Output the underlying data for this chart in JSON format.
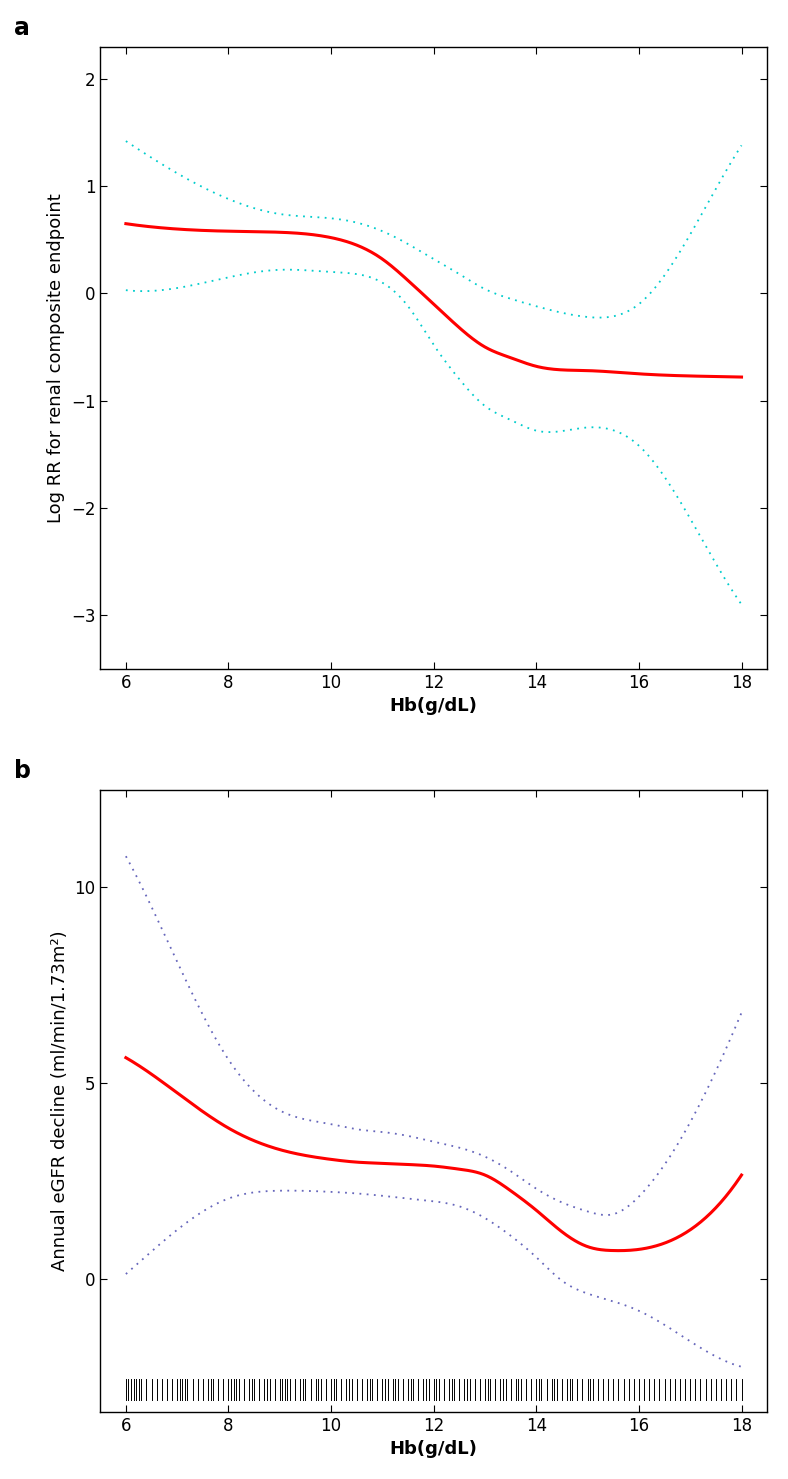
{
  "panel_a": {
    "label": "a",
    "xlabel": "Hb(g/dL)",
    "ylabel": "Log RR for renal composite endpoint",
    "xlim": [
      5.5,
      18.5
    ],
    "ylim": [
      -3.5,
      2.3
    ],
    "xticks": [
      6,
      8,
      10,
      12,
      14,
      16,
      18
    ],
    "yticks": [
      -3,
      -2,
      -1,
      0,
      1,
      2
    ],
    "line_color": "#FF0000",
    "ci_color": "#00CCCC",
    "main_x": [
      6,
      7,
      8,
      9,
      10,
      10.5,
      11,
      11.5,
      12,
      12.5,
      13,
      13.5,
      14,
      15,
      16,
      17,
      18
    ],
    "main_y": [
      0.65,
      0.6,
      0.58,
      0.57,
      0.52,
      0.45,
      0.32,
      0.12,
      -0.1,
      -0.32,
      -0.5,
      -0.6,
      -0.68,
      -0.72,
      -0.75,
      -0.77,
      -0.78
    ],
    "upper_x": [
      6,
      7,
      8,
      9,
      10,
      10.5,
      11,
      11.5,
      12,
      12.5,
      13,
      13.5,
      14,
      15,
      16,
      17,
      18
    ],
    "upper_y": [
      1.42,
      1.12,
      0.88,
      0.74,
      0.7,
      0.66,
      0.58,
      0.46,
      0.32,
      0.18,
      0.04,
      -0.05,
      -0.12,
      -0.22,
      -0.1,
      0.55,
      1.38
    ],
    "lower_x": [
      6,
      7,
      8,
      9,
      10,
      10.5,
      11,
      11.5,
      12,
      12.5,
      13,
      13.5,
      14,
      15,
      16,
      17,
      18
    ],
    "lower_y": [
      0.03,
      0.05,
      0.15,
      0.22,
      0.2,
      0.18,
      0.1,
      -0.12,
      -0.48,
      -0.8,
      -1.05,
      -1.18,
      -1.28,
      -1.25,
      -1.42,
      -2.1,
      -2.9
    ]
  },
  "panel_b": {
    "label": "b",
    "xlabel": "Hb(g/dL)",
    "ylabel": "Annual eGFR decline (ml/min/1.73m²)",
    "xlim": [
      5.5,
      18.5
    ],
    "ylim": [
      -2.5,
      12.5
    ],
    "plot_ylim": [
      -2.5,
      12.5
    ],
    "xticks": [
      6,
      8,
      10,
      12,
      14,
      16,
      18
    ],
    "yticks": [
      0,
      5,
      10
    ],
    "line_color": "#FF0000",
    "ci_color": "#6666BB",
    "main_x": [
      6,
      7,
      8,
      9,
      10,
      10.5,
      11,
      11.5,
      12,
      12.5,
      13,
      13.5,
      14,
      14.5,
      15,
      15.5,
      16,
      17,
      18
    ],
    "main_y": [
      5.65,
      4.75,
      3.85,
      3.3,
      3.05,
      2.98,
      2.95,
      2.92,
      2.88,
      2.8,
      2.65,
      2.25,
      1.75,
      1.2,
      0.82,
      0.72,
      0.75,
      1.25,
      2.65
    ],
    "upper_x": [
      6,
      7,
      8,
      9,
      10,
      10.5,
      11,
      11.5,
      12,
      12.5,
      13,
      13.5,
      14,
      14.5,
      15,
      15.5,
      16,
      17,
      18
    ],
    "upper_y": [
      10.8,
      8.1,
      5.6,
      4.3,
      3.95,
      3.82,
      3.75,
      3.65,
      3.5,
      3.35,
      3.12,
      2.75,
      2.3,
      1.95,
      1.72,
      1.65,
      2.1,
      4.0,
      6.8
    ],
    "lower_x": [
      6,
      7,
      8,
      9,
      10,
      10.5,
      11,
      11.5,
      12,
      12.5,
      13,
      13.5,
      14,
      14.5,
      15,
      15.5,
      16,
      17,
      18
    ],
    "lower_y": [
      0.12,
      1.25,
      2.05,
      2.25,
      2.22,
      2.18,
      2.12,
      2.05,
      1.98,
      1.85,
      1.55,
      1.1,
      0.55,
      -0.05,
      -0.38,
      -0.58,
      -0.82,
      -1.6,
      -2.25
    ],
    "rug_x": [
      6.0,
      6.05,
      6.1,
      6.15,
      6.2,
      6.25,
      6.3,
      6.4,
      6.5,
      6.6,
      6.7,
      6.8,
      6.9,
      7.0,
      7.05,
      7.1,
      7.15,
      7.2,
      7.3,
      7.4,
      7.5,
      7.6,
      7.65,
      7.7,
      7.8,
      7.9,
      8.0,
      8.05,
      8.1,
      8.15,
      8.2,
      8.3,
      8.4,
      8.45,
      8.5,
      8.6,
      8.7,
      8.75,
      8.8,
      8.9,
      9.0,
      9.05,
      9.1,
      9.15,
      9.2,
      9.3,
      9.4,
      9.45,
      9.5,
      9.6,
      9.7,
      9.75,
      9.8,
      9.9,
      10.0,
      10.05,
      10.1,
      10.2,
      10.3,
      10.35,
      10.4,
      10.5,
      10.6,
      10.7,
      10.75,
      10.8,
      10.9,
      11.0,
      11.05,
      11.1,
      11.2,
      11.25,
      11.3,
      11.4,
      11.5,
      11.55,
      11.6,
      11.7,
      11.8,
      11.85,
      11.9,
      12.0,
      12.05,
      12.1,
      12.2,
      12.3,
      12.35,
      12.4,
      12.5,
      12.6,
      12.65,
      12.7,
      12.8,
      12.9,
      13.0,
      13.05,
      13.1,
      13.2,
      13.3,
      13.35,
      13.4,
      13.5,
      13.6,
      13.65,
      13.7,
      13.8,
      13.9,
      14.0,
      14.05,
      14.1,
      14.2,
      14.3,
      14.35,
      14.4,
      14.5,
      14.6,
      14.65,
      14.7,
      14.8,
      14.9,
      15.0,
      15.05,
      15.1,
      15.2,
      15.3,
      15.4,
      15.5,
      15.6,
      15.7,
      15.8,
      15.9,
      16.0,
      16.1,
      16.2,
      16.3,
      16.4,
      16.5,
      16.6,
      16.7,
      16.8,
      16.9,
      17.0,
      17.1,
      17.2,
      17.3,
      17.4,
      17.5,
      17.6,
      17.7,
      17.8,
      17.9,
      18.0
    ]
  },
  "bg_color": "#FFFFFF",
  "tick_fontsize": 12,
  "axis_label_fontsize": 13,
  "panel_label_fontsize": 17,
  "line_width": 2.2,
  "ci_linewidth": 1.3
}
